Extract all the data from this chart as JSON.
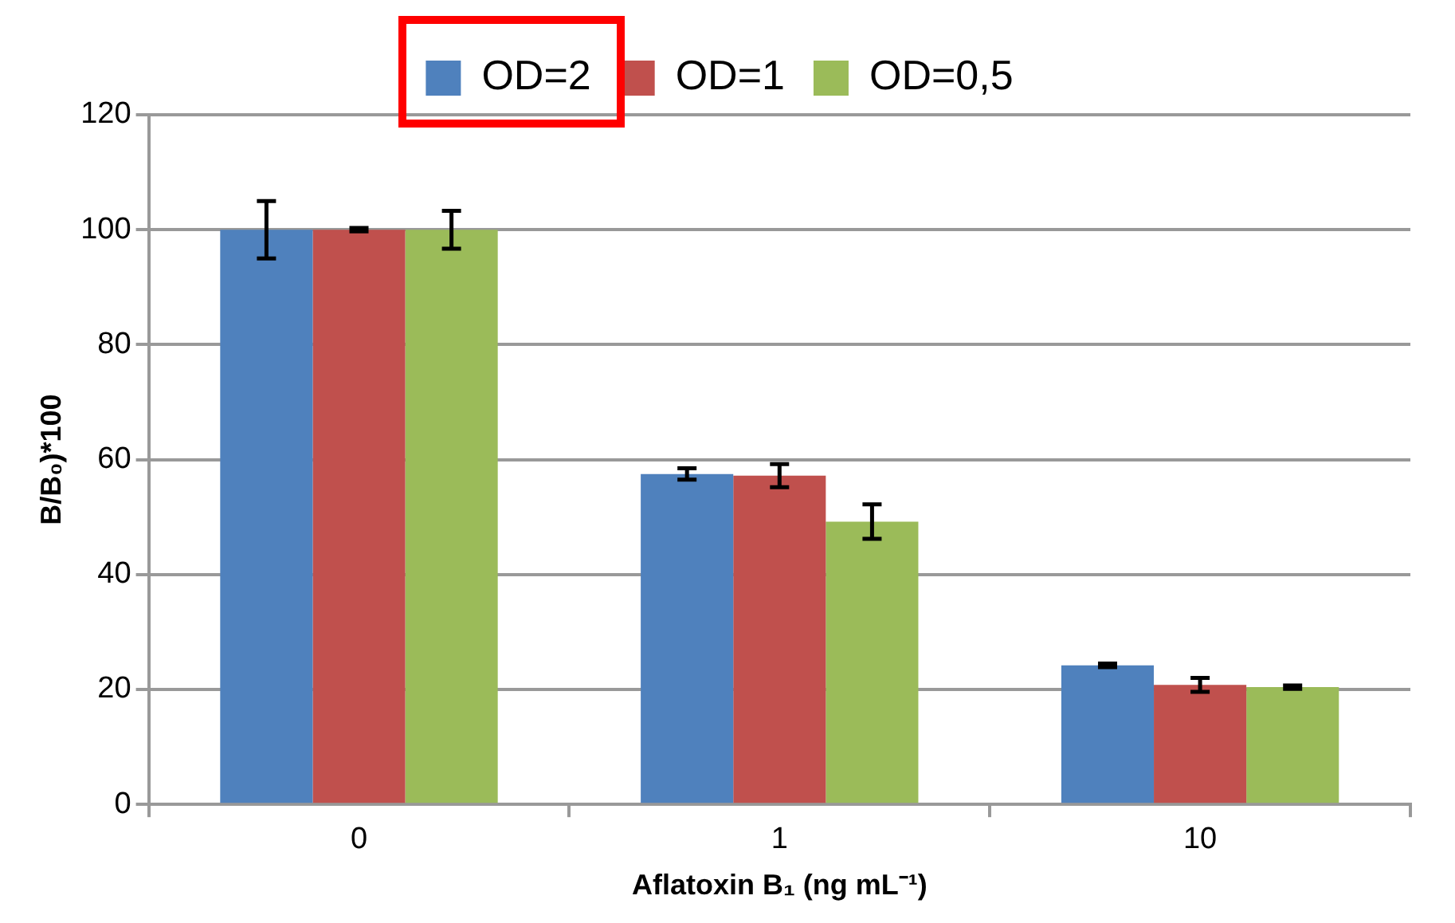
{
  "chart_data": {
    "type": "bar",
    "xlabel": "Aflatoxin B₁ (ng mL⁻¹)",
    "ylabel": "B/B₀)*100",
    "categories": [
      "0",
      "1",
      "10"
    ],
    "series": [
      {
        "name": "OD=2",
        "color": "#4f81bd",
        "values": [
          100,
          57.5,
          24.2
        ],
        "errors": [
          5,
          1,
          0.3
        ]
      },
      {
        "name": "OD=1",
        "color": "#c0504d",
        "values": [
          100,
          57.2,
          20.8
        ],
        "errors": [
          0.3,
          2,
          1.2
        ]
      },
      {
        "name": "OD=0,5",
        "color": "#9bbb59",
        "values": [
          100,
          49.2,
          20.4
        ],
        "errors": [
          3.3,
          3,
          0.3
        ]
      }
    ],
    "ylim": [
      0,
      120
    ],
    "yticks": [
      0,
      20,
      40,
      60,
      80,
      100,
      120
    ],
    "grid": "y",
    "legend": "top"
  }
}
